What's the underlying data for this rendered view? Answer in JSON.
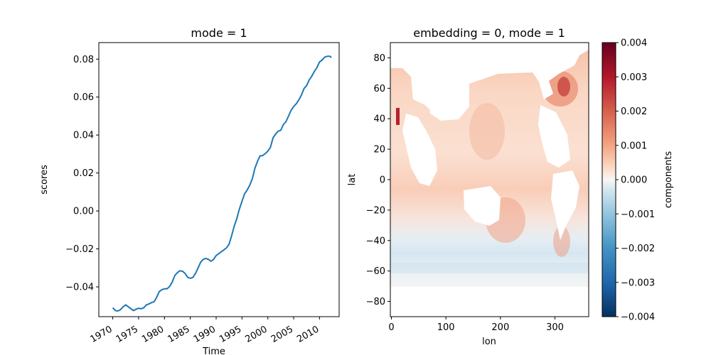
{
  "chart_data": [
    {
      "type": "line",
      "title": "mode = 1",
      "xlabel": "Time",
      "ylabel": "scores",
      "xlim": [
        1967.3,
        2013.8
      ],
      "ylim": [
        -0.0557,
        0.0887
      ],
      "x_ticks": [
        1970,
        1975,
        1980,
        1985,
        1990,
        1995,
        2000,
        2005,
        2010
      ],
      "x_tick_labels": [
        "1970",
        "1975",
        "1980",
        "1985",
        "1990",
        "1995",
        "2000",
        "2005",
        "2010"
      ],
      "y_ticks": [
        -0.04,
        -0.02,
        0.0,
        0.02,
        0.04,
        0.06,
        0.08
      ],
      "y_tick_labels": [
        "−0.04",
        "−0.02",
        "0.00",
        "0.02",
        "0.04",
        "0.06",
        "0.08"
      ],
      "series": [
        {
          "color": "#1f77b4",
          "x": [
            1970.0,
            1970.5,
            1971.0,
            1971.5,
            1972.0,
            1972.5,
            1973.0,
            1973.5,
            1974.0,
            1974.5,
            1975.0,
            1975.5,
            1976.0,
            1976.5,
            1977.0,
            1977.5,
            1978.0,
            1978.5,
            1979.0,
            1979.5,
            1980.0,
            1980.5,
            1981.0,
            1981.5,
            1982.0,
            1982.5,
            1983.0,
            1983.5,
            1984.0,
            1984.5,
            1985.0,
            1985.5,
            1986.0,
            1986.5,
            1987.0,
            1987.5,
            1988.0,
            1988.5,
            1989.0,
            1989.5,
            1990.0,
            1990.5,
            1991.0,
            1991.5,
            1992.0,
            1992.5,
            1993.0,
            1993.5,
            1994.0,
            1994.5,
            1995.0,
            1995.5,
            1996.0,
            1996.5,
            1997.0,
            1997.5,
            1998.0,
            1998.5,
            1999.0,
            1999.5,
            2000.0,
            2000.5,
            2001.0,
            2001.5,
            2002.0,
            2002.5,
            2003.0,
            2003.5,
            2004.0,
            2004.5,
            2005.0,
            2005.5,
            2006.0,
            2006.5,
            2007.0,
            2007.5,
            2008.0,
            2008.5,
            2009.0,
            2009.5,
            2010.0,
            2010.5,
            2011.0,
            2011.5,
            2012.0,
            2012.3
          ],
          "y": [
            -0.051,
            -0.0525,
            -0.0527,
            -0.052,
            -0.0505,
            -0.0495,
            -0.0505,
            -0.0515,
            -0.0525,
            -0.0518,
            -0.0513,
            -0.0515,
            -0.051,
            -0.0495,
            -0.049,
            -0.0483,
            -0.0478,
            -0.0455,
            -0.0425,
            -0.0415,
            -0.041,
            -0.041,
            -0.0398,
            -0.0375,
            -0.034,
            -0.0325,
            -0.0315,
            -0.0318,
            -0.033,
            -0.035,
            -0.0355,
            -0.035,
            -0.033,
            -0.03,
            -0.027,
            -0.0255,
            -0.025,
            -0.0255,
            -0.0265,
            -0.0255,
            -0.0235,
            -0.0225,
            -0.0215,
            -0.0205,
            -0.0195,
            -0.0175,
            -0.013,
            -0.008,
            -0.004,
            0.001,
            0.005,
            0.009,
            0.011,
            0.0135,
            0.017,
            0.0225,
            0.0262,
            0.029,
            0.0292,
            0.0302,
            0.0315,
            0.0335,
            0.0385,
            0.0405,
            0.042,
            0.0425,
            0.0455,
            0.047,
            0.05,
            0.053,
            0.055,
            0.0565,
            0.0585,
            0.061,
            0.0645,
            0.066,
            0.069,
            0.071,
            0.0735,
            0.0755,
            0.0785,
            0.0795,
            0.081,
            0.0815,
            0.0815,
            0.0808
          ]
        }
      ]
    },
    {
      "type": "heatmap",
      "title": "embedding = 0, mode = 1",
      "xlabel": "lon",
      "ylabel": "lat",
      "xlim": [
        -2,
        362
      ],
      "ylim": [
        -90,
        90
      ],
      "x_ticks": [
        0,
        100,
        200,
        300
      ],
      "x_tick_labels": [
        "0",
        "100",
        "200",
        "300"
      ],
      "y_ticks": [
        -80,
        -60,
        -40,
        -20,
        0,
        20,
        40,
        60,
        80
      ],
      "y_tick_labels": [
        "−80",
        "−60",
        "−40",
        "−20",
        "0",
        "20",
        "40",
        "60",
        "80"
      ],
      "colormap": "RdBu_r",
      "vmin": -0.004,
      "vmax": 0.004,
      "colorbar_label": "components",
      "colorbar_ticks": [
        0.004,
        0.003,
        0.002,
        0.001,
        0.0,
        -0.001,
        -0.002,
        -0.003,
        -0.004
      ],
      "colorbar_tick_labels": [
        "0.004",
        "0.003",
        "0.002",
        "0.001",
        "0.000",
        "−0.001",
        "−0.002",
        "−0.003",
        "−0.004"
      ]
    }
  ]
}
